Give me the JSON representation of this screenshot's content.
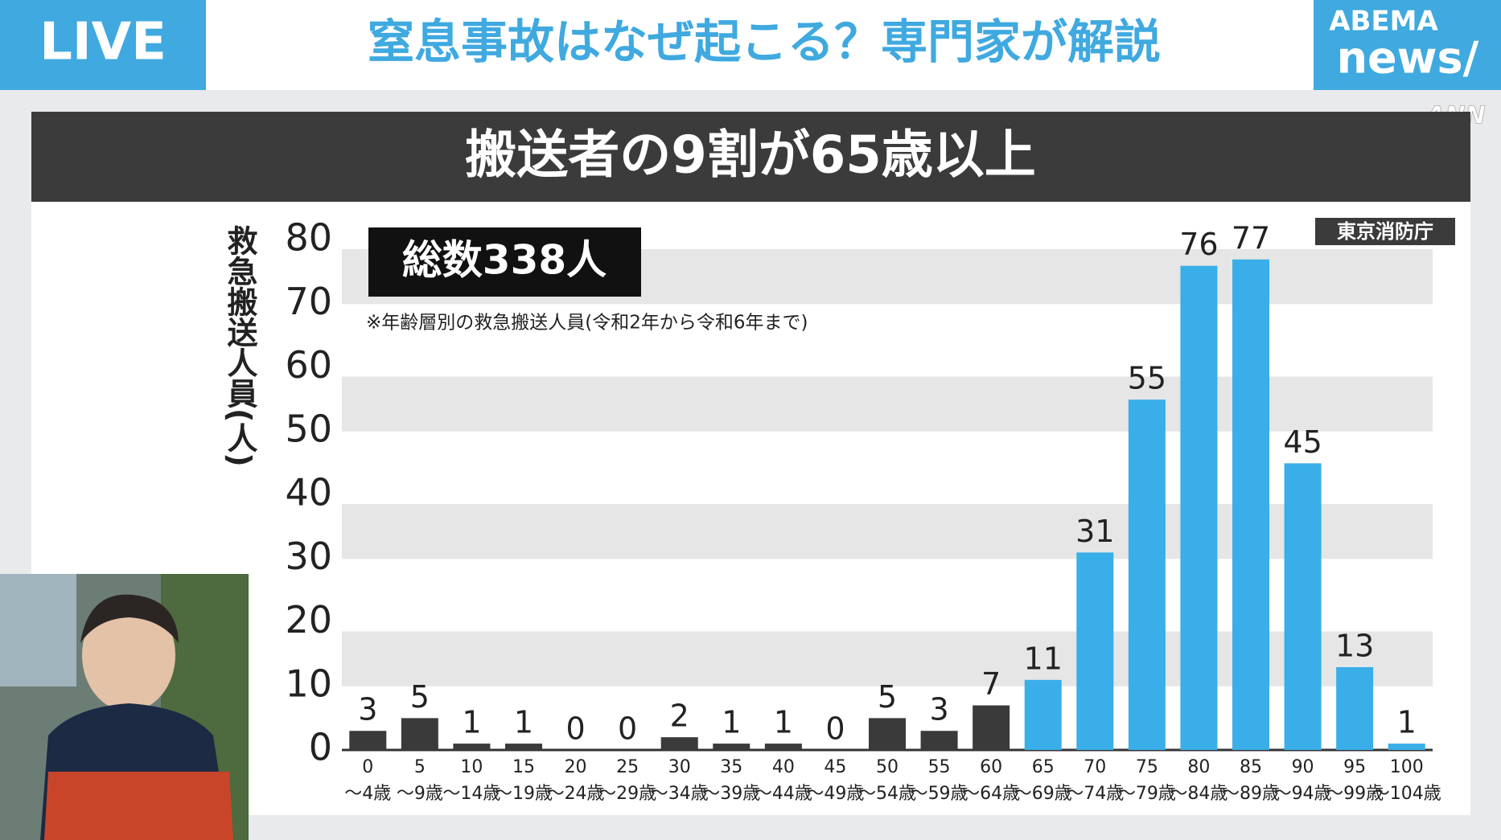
{
  "header": {
    "live": "LIVE",
    "headline": "窒息事故はなぜ起こる？専門家が解説",
    "logo_top": "ABEMA",
    "logo_bottom": "news/",
    "watermark": "ANN"
  },
  "chart_data": {
    "type": "bar",
    "title": "搬送者の9割が65歳以上",
    "total": "総数338人",
    "note": "※年齢層別の救急搬送人員(令和2年から令和6年まで)",
    "source": "東京消防庁",
    "ylabel": "救急搬送人員(人)",
    "categories": [
      "0\n〜4歳",
      "5\n〜9歳",
      "10\n〜14歳",
      "15\n〜19歳",
      "20\n〜24歳",
      "25\n〜29歳",
      "30\n〜34歳",
      "35\n〜39歳",
      "40\n〜44歳",
      "45\n〜49歳",
      "50\n〜54歳",
      "55\n〜59歳",
      "60\n〜64歳",
      "65\n〜69歳",
      "70\n〜74歳",
      "75\n〜79歳",
      "80\n〜84歳",
      "85\n〜89歳",
      "90\n〜94歳",
      "95\n〜99歳",
      "100\n〜104歳"
    ],
    "values": [
      3,
      5,
      1,
      1,
      0,
      0,
      2,
      1,
      1,
      0,
      5,
      3,
      7,
      11,
      31,
      55,
      76,
      77,
      45,
      13,
      1
    ],
    "colors": [
      "#3a3a3a",
      "#3a3a3a",
      "#3a3a3a",
      "#3a3a3a",
      "#3a3a3a",
      "#3a3a3a",
      "#3a3a3a",
      "#3a3a3a",
      "#3a3a3a",
      "#3a3a3a",
      "#3a3a3a",
      "#3a3a3a",
      "#3a3a3a",
      "#3aaee8",
      "#3aaee8",
      "#3aaee8",
      "#3aaee8",
      "#3aaee8",
      "#3aaee8",
      "#3aaee8",
      "#3aaee8"
    ],
    "ylim": [
      0,
      80
    ],
    "yticks": [
      0,
      10,
      20,
      30,
      40,
      50,
      60,
      70,
      80
    ],
    "grid": true
  }
}
